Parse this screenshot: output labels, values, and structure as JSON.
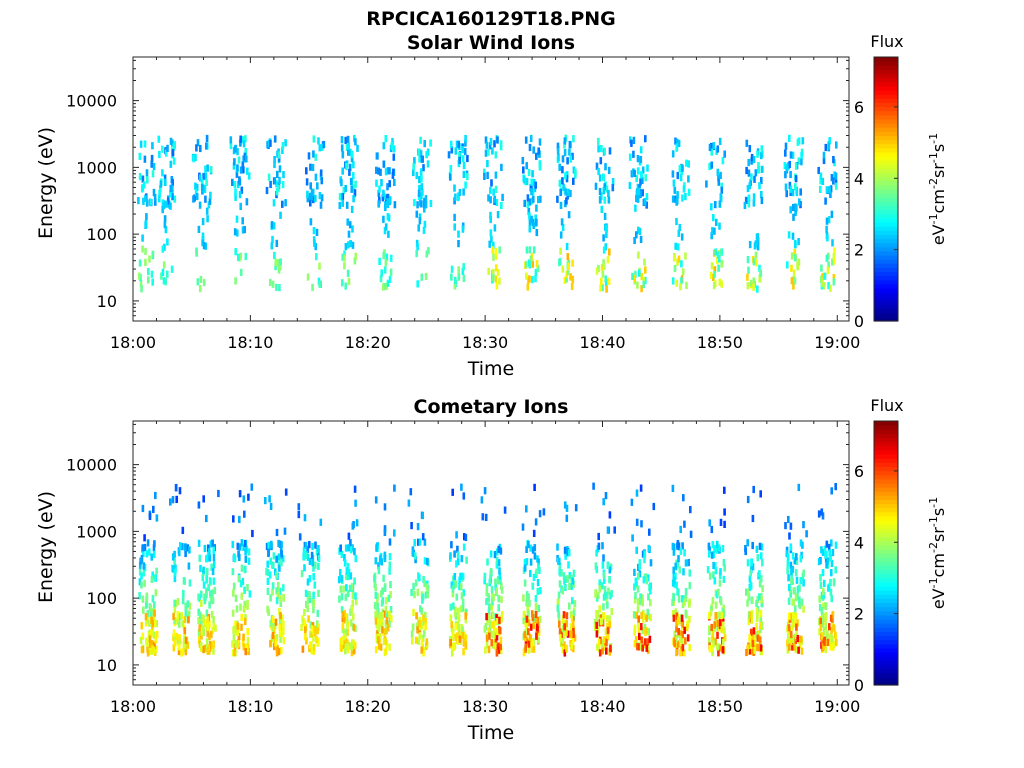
{
  "figure": {
    "title": "RPCICA160129T18.PNG"
  },
  "colors": {
    "colormap": [
      "#00007f",
      "#0000ff",
      "#007fff",
      "#00ffff",
      "#7fff7f",
      "#ffff00",
      "#ff7f00",
      "#ff0000",
      "#7f0000"
    ]
  },
  "chart_data": [
    {
      "type": "heatmap",
      "title": "Solar Wind Ions",
      "xlabel": "Time",
      "ylabel": "Energy (eV)",
      "xlim": [
        "18:00",
        "19:01"
      ],
      "x_ticks": [
        "18:00",
        "18:10",
        "18:20",
        "18:30",
        "18:40",
        "18:50",
        "19:00"
      ],
      "y_scale": "log",
      "ylim": [
        5,
        45000
      ],
      "y_ticks": [
        "10",
        "100",
        "1000",
        "10000"
      ],
      "colorbar": {
        "title": "Flux",
        "label": "eV-1cm-2sr-1s-1",
        "range": [
          0,
          7.4
        ],
        "ticks": [
          "0",
          "2",
          "4",
          "6"
        ]
      },
      "bursts_minutes": [
        1.0,
        2.8,
        5.8,
        9.0,
        12.1,
        15.4,
        18.3,
        21.4,
        24.5,
        27.6,
        30.6,
        33.9,
        36.8,
        40.0,
        43.0,
        46.5,
        49.5,
        52.8,
        56.2,
        59.1
      ],
      "upper_band_eV": [
        500,
        3000
      ],
      "lower_band_eV": [
        15,
        60
      ],
      "typical_flux": 2.5,
      "peak_flux": 4.5
    },
    {
      "type": "heatmap",
      "title": "Cometary Ions",
      "xlabel": "Time",
      "ylabel": "Energy (eV)",
      "xlim": [
        "18:00",
        "19:01"
      ],
      "x_ticks": [
        "18:00",
        "18:10",
        "18:20",
        "18:30",
        "18:40",
        "18:50",
        "19:00"
      ],
      "y_scale": "log",
      "ylim": [
        5,
        45000
      ],
      "y_ticks": [
        "10",
        "100",
        "1000",
        "10000"
      ],
      "colorbar": {
        "title": "Flux",
        "label": "eV-1cm-2sr-1s-1",
        "range": [
          0,
          7.4
        ],
        "ticks": [
          "0",
          "2",
          "4",
          "6"
        ]
      },
      "bursts_minutes": [
        1.2,
        4.0,
        6.2,
        9.1,
        12.0,
        15.0,
        18.2,
        21.2,
        24.3,
        27.6,
        30.6,
        33.9,
        36.8,
        40.0,
        43.3,
        46.6,
        49.6,
        52.8,
        56.3,
        59.1
      ],
      "band_eV": [
        15,
        700
      ],
      "peak_band_eV": [
        15,
        60
      ],
      "typical_flux": 4.0,
      "peak_flux": 6.5
    }
  ]
}
